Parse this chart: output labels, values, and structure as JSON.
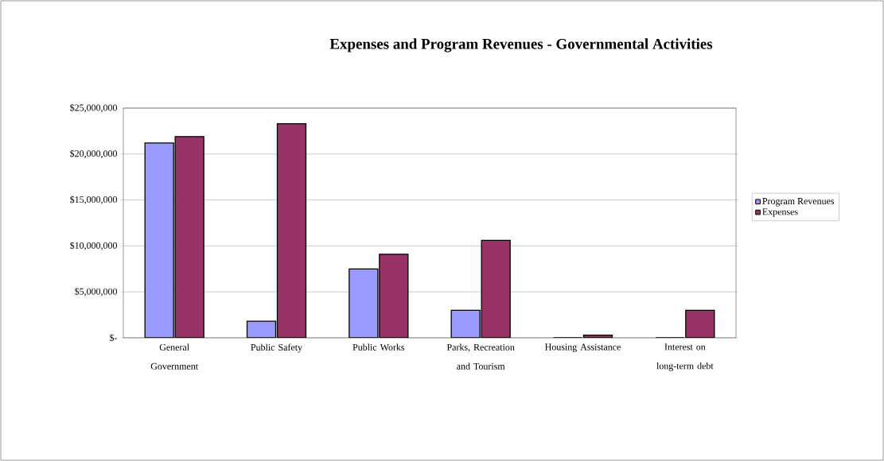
{
  "chart_data": {
    "type": "bar",
    "title": "Expenses and Program Revenues  -  Governmental Activities",
    "categories": [
      "General Government",
      "Public Safety",
      "Public Works",
      "Parks, Recreation and Tourism",
      "Housing Assistance",
      "Interest on long-term debt"
    ],
    "series": [
      {
        "name": "Program Revenues",
        "color": "#9999ff",
        "values": [
          21200000,
          1800000,
          7500000,
          3000000,
          0,
          0
        ]
      },
      {
        "name": "Expenses",
        "color": "#993366",
        "values": [
          21900000,
          23300000,
          9100000,
          10600000,
          300000,
          3000000
        ]
      }
    ],
    "ylim": [
      0,
      25000000
    ],
    "yticks": [
      {
        "value": 0,
        "label": "$-"
      },
      {
        "value": 5000000,
        "label": "$5,000,000"
      },
      {
        "value": 10000000,
        "label": "$10,000,000"
      },
      {
        "value": 15000000,
        "label": "$15,000,000"
      },
      {
        "value": 20000000,
        "label": "$20,000,000"
      },
      {
        "value": 25000000,
        "label": "$25,000,000"
      }
    ],
    "grid": "y",
    "legend": "right"
  }
}
